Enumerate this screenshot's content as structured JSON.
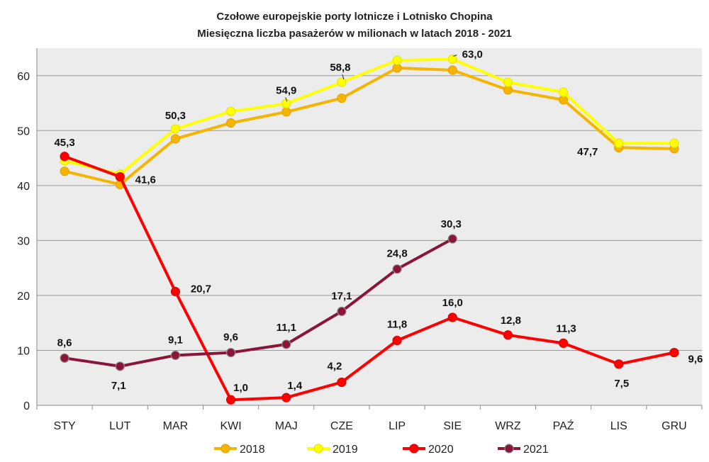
{
  "chart_data": {
    "type": "line",
    "title": "Czołowe europejskie porty lotnicze i Lotnisko Chopina",
    "subtitle": "Miesięczna liczba pasażerów w milionach w latach 2018 - 2021",
    "categories": [
      "STY",
      "LUT",
      "MAR",
      "KWI",
      "MAJ",
      "CZE",
      "LIP",
      "SIE",
      "WRZ",
      "PAŹ",
      "LIS",
      "GRU"
    ],
    "ylim": [
      0,
      65
    ],
    "yticks": [
      0,
      10,
      20,
      30,
      40,
      50,
      60
    ],
    "grid": true,
    "legend_position": "bottom",
    "series": [
      {
        "name": "2018",
        "color": "#F5B400",
        "values": [
          42.6,
          40.2,
          48.5,
          51.4,
          53.4,
          55.9,
          61.4,
          61.0,
          57.4,
          55.6,
          46.9,
          46.7
        ]
      },
      {
        "name": "2019",
        "color": "#FFFF00",
        "values": [
          44.5,
          42.1,
          50.3,
          53.5,
          54.9,
          58.8,
          62.8,
          63.0,
          58.8,
          57.0,
          47.7,
          47.7
        ]
      },
      {
        "name": "2020",
        "color": "#FF0000",
        "values": [
          45.3,
          41.6,
          20.7,
          1.0,
          1.4,
          4.2,
          11.8,
          16.0,
          12.8,
          11.3,
          7.5,
          9.6
        ]
      },
      {
        "name": "2021",
        "color": "#8B1538",
        "values": [
          8.6,
          7.1,
          9.1,
          9.6,
          11.1,
          17.1,
          24.8,
          30.3,
          null,
          null,
          null,
          null
        ]
      }
    ],
    "annotations": [
      {
        "series": "2019",
        "index": 2,
        "text": "50,3"
      },
      {
        "series": "2019",
        "index": 4,
        "text": "54,9"
      },
      {
        "series": "2019",
        "index": 5,
        "text": "58,8"
      },
      {
        "series": "2019",
        "index": 7,
        "text": "63,0"
      },
      {
        "series": "2019",
        "index": 10,
        "text": "47,7"
      },
      {
        "series": "2020",
        "index": 0,
        "text": "45,3"
      },
      {
        "series": "2020",
        "index": 1,
        "text": "41,6"
      },
      {
        "series": "2020",
        "index": 2,
        "text": "20,7"
      },
      {
        "series": "2020",
        "index": 3,
        "text": "1,0"
      },
      {
        "series": "2020",
        "index": 4,
        "text": "1,4"
      },
      {
        "series": "2020",
        "index": 5,
        "text": "4,2"
      },
      {
        "series": "2020",
        "index": 6,
        "text": "11,8"
      },
      {
        "series": "2020",
        "index": 7,
        "text": "16,0"
      },
      {
        "series": "2020",
        "index": 8,
        "text": "12,8"
      },
      {
        "series": "2020",
        "index": 9,
        "text": "11,3"
      },
      {
        "series": "2020",
        "index": 10,
        "text": "7,5"
      },
      {
        "series": "2020",
        "index": 11,
        "text": "9,6"
      },
      {
        "series": "2021",
        "index": 0,
        "text": "8,6"
      },
      {
        "series": "2021",
        "index": 1,
        "text": "7,1"
      },
      {
        "series": "2021",
        "index": 2,
        "text": "9,1"
      },
      {
        "series": "2021",
        "index": 3,
        "text": "9,6"
      },
      {
        "series": "2021",
        "index": 4,
        "text": "11,1"
      },
      {
        "series": "2021",
        "index": 5,
        "text": "17,1"
      },
      {
        "series": "2021",
        "index": 6,
        "text": "24,8"
      },
      {
        "series": "2021",
        "index": 7,
        "text": "30,3"
      }
    ]
  }
}
